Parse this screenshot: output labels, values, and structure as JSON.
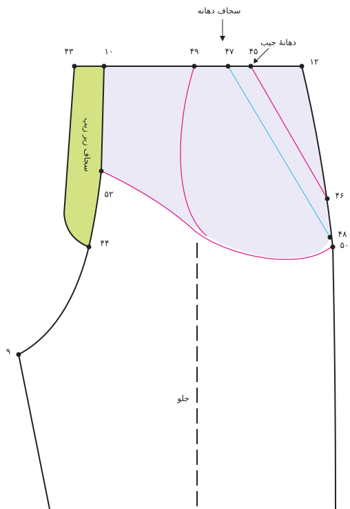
{
  "labels": {
    "facing": "سجاف دهانه",
    "pocket_opening": "دهانهٔ جیب",
    "zip_facing": "سجاف زیر زیپ",
    "front": "جلو"
  },
  "nodes": [
    {
      "label": "۴۳"
    },
    {
      "label": "۱۰"
    },
    {
      "label": "۴۹"
    },
    {
      "label": "۴۷"
    },
    {
      "label": "۴۵"
    },
    {
      "label": "۱۲"
    },
    {
      "label": "۴۶"
    },
    {
      "label": "۴۸"
    },
    {
      "label": "۵۰"
    },
    {
      "label": "۵۲"
    },
    {
      "label": "۴۴"
    },
    {
      "label": "۹"
    }
  ]
}
